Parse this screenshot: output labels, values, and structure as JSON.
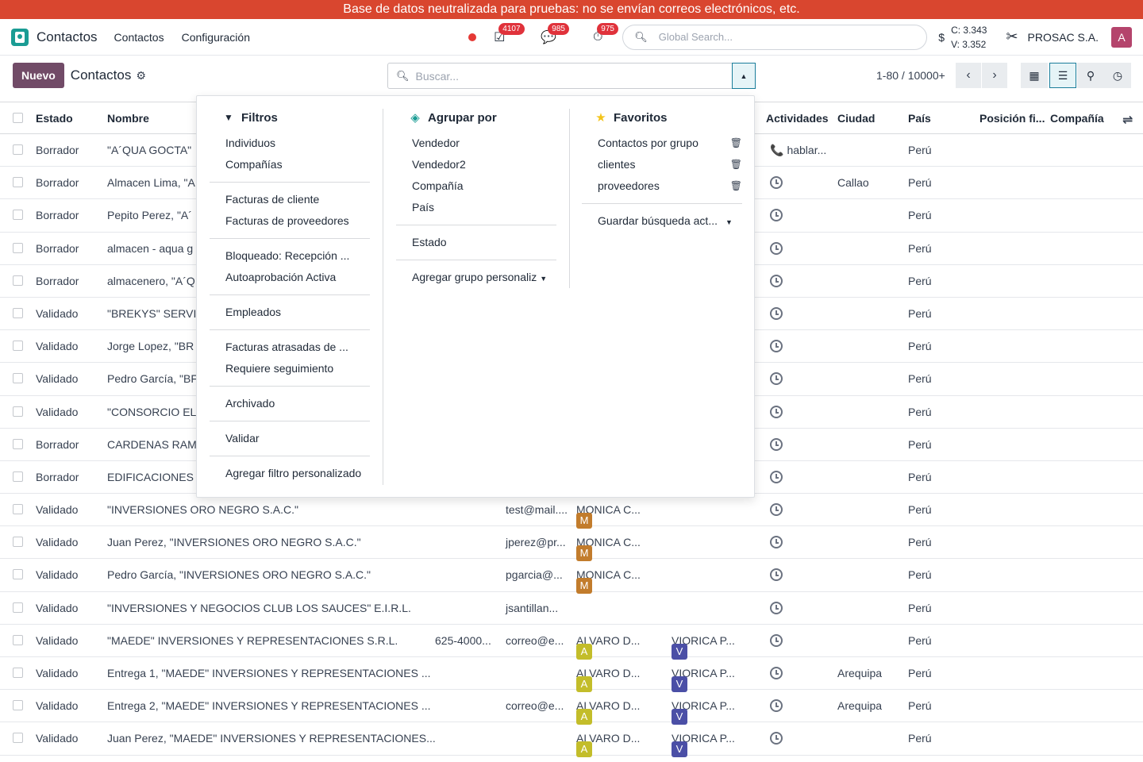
{
  "banner": "Base de datos neutralizada para pruebas: no se envían correos electrónicos, etc.",
  "navbar": {
    "app_name": "Contactos",
    "menus": [
      "Contactos",
      "Configuración"
    ],
    "badges": {
      "activities": "4107",
      "messages": "985",
      "timers": "975"
    },
    "global_search_placeholder": "Global Search...",
    "currency": {
      "symbol": "$",
      "c": "C: 3.343",
      "v": "V: 3.352"
    },
    "company": "PROSAC S.A.",
    "avatar_letter": "A"
  },
  "control": {
    "new_label": "Nuevo",
    "title": "Contactos",
    "search_placeholder": "Buscar...",
    "pager": "1-80 / 10000+"
  },
  "columns": {
    "estado": "Estado",
    "nombre": "Nombre",
    "actividades": "Actividades",
    "ciudad": "Ciudad",
    "pais": "País",
    "posicion": "Posición fi...",
    "compania": "Compañía"
  },
  "rows": [
    {
      "estado": "Borrador",
      "nombre": "\"A´QUA GOCTA\"",
      "phone": "",
      "email": "",
      "v1": "",
      "v2": "",
      "act": "hablar...",
      "ciudad": "",
      "pais": "Perú"
    },
    {
      "estado": "Borrador",
      "nombre": "Almacen Lima, \"A",
      "phone": "",
      "email": "",
      "v1": "",
      "v2": "",
      "act": "clock",
      "ciudad": "Callao",
      "pais": "Perú"
    },
    {
      "estado": "Borrador",
      "nombre": "Pepito Perez, \"A´",
      "phone": "",
      "email": "",
      "v1": "",
      "v2": "",
      "act": "clock",
      "ciudad": "",
      "pais": "Perú"
    },
    {
      "estado": "Borrador",
      "nombre": "almacen - aqua g",
      "phone": "",
      "email": "",
      "v1": "",
      "v2": "",
      "act": "clock",
      "ciudad": "",
      "pais": "Perú"
    },
    {
      "estado": "Borrador",
      "nombre": "almacenero, \"A´Q",
      "phone": "",
      "email": "",
      "v1": "",
      "v2": "",
      "act": "clock",
      "ciudad": "",
      "pais": "Perú"
    },
    {
      "estado": "Validado",
      "nombre": "\"BREKYS\" SERVIC",
      "phone": "",
      "email": "",
      "v1": "",
      "v2": "",
      "act": "clock",
      "ciudad": "",
      "pais": "Perú"
    },
    {
      "estado": "Validado",
      "nombre": "Jorge Lopez, \"BR",
      "phone": "",
      "email": "",
      "v1": "",
      "v2": "",
      "act": "clock",
      "ciudad": "",
      "pais": "Perú"
    },
    {
      "estado": "Validado",
      "nombre": "Pedro García, \"BF",
      "phone": "",
      "email": "",
      "v1": "",
      "v2": "",
      "act": "clock",
      "ciudad": "",
      "pais": "Perú"
    },
    {
      "estado": "Validado",
      "nombre": "\"CONSORCIO EL",
      "phone": "",
      "email": "",
      "v1": "",
      "v2": "",
      "act": "clock",
      "ciudad": "",
      "pais": "Perú"
    },
    {
      "estado": "Borrador",
      "nombre": "CARDENAS RAMI",
      "phone": "",
      "email": "",
      "v1": "",
      "v2": "",
      "act": "clock",
      "ciudad": "",
      "pais": "Perú"
    },
    {
      "estado": "Borrador",
      "nombre": "EDIFICACIONES C",
      "phone": "",
      "email": "",
      "v1": "",
      "v2": "",
      "act": "clock",
      "ciudad": "",
      "pais": "Perú"
    },
    {
      "estado": "Validado",
      "nombre": "\"INVERSIONES ORO NEGRO S.A.C.\"",
      "phone": "",
      "email": "test@mail....",
      "v1": "MONICA C...",
      "v2": "",
      "act": "clock",
      "ciudad": "",
      "pais": "Perú"
    },
    {
      "estado": "Validado",
      "nombre": "Juan Perez, \"INVERSIONES ORO NEGRO S.A.C.\"",
      "phone": "",
      "email": "jperez@pr...",
      "v1": "MONICA C...",
      "v2": "",
      "act": "clock",
      "ciudad": "",
      "pais": "Perú"
    },
    {
      "estado": "Validado",
      "nombre": "Pedro García, \"INVERSIONES ORO NEGRO S.A.C.\"",
      "phone": "",
      "email": "pgarcia@...",
      "v1": "MONICA C...",
      "v2": "",
      "act": "clock",
      "ciudad": "",
      "pais": "Perú"
    },
    {
      "estado": "Validado",
      "nombre": "\"INVERSIONES Y NEGOCIOS CLUB LOS SAUCES\" E.I.R.L.",
      "phone": "",
      "email": "jsantillan...",
      "v1": "",
      "v2": "",
      "act": "clock",
      "ciudad": "",
      "pais": "Perú"
    },
    {
      "estado": "Validado",
      "nombre": "\"MAEDE\" INVERSIONES Y REPRESENTACIONES S.R.L.",
      "phone": "625-4000...",
      "email": "correo@e...",
      "v1": "ALVARO D...",
      "v2": "VIORICA P...",
      "act": "clock",
      "ciudad": "",
      "pais": "Perú"
    },
    {
      "estado": "Validado",
      "nombre": "Entrega 1, \"MAEDE\" INVERSIONES Y REPRESENTACIONES ...",
      "phone": "",
      "email": "",
      "v1": "ALVARO D...",
      "v2": "VIORICA P...",
      "act": "clock",
      "ciudad": "Arequipa",
      "pais": "Perú"
    },
    {
      "estado": "Validado",
      "nombre": "Entrega 2, \"MAEDE\" INVERSIONES Y REPRESENTACIONES ...",
      "phone": "",
      "email": "correo@e...",
      "v1": "ALVARO D...",
      "v2": "VIORICA P...",
      "act": "clock",
      "ciudad": "Arequipa",
      "pais": "Perú"
    },
    {
      "estado": "Validado",
      "nombre": "Juan Perez, \"MAEDE\" INVERSIONES Y REPRESENTACIONES...",
      "phone": "",
      "email": "",
      "v1": "ALVARO D...",
      "v2": "VIORICA P...",
      "act": "clock",
      "ciudad": "",
      "pais": "Perú"
    }
  ],
  "dropdown": {
    "filters": {
      "title": "Filtros",
      "groups": [
        [
          "Individuos",
          "Compañías"
        ],
        [
          "Facturas de cliente",
          "Facturas de proveedores"
        ],
        [
          "Bloqueado: Recepción ...",
          "Autoaprobación Activa"
        ],
        [
          "Empleados"
        ],
        [
          "Facturas atrasadas de ...",
          "Requiere seguimiento"
        ],
        [
          "Archivado"
        ],
        [
          "Validar"
        ],
        [
          "Agregar filtro personalizado"
        ]
      ]
    },
    "groupby": {
      "title": "Agrupar por",
      "groups": [
        [
          "Vendedor",
          "Vendedor2",
          "Compañía",
          "País"
        ],
        [
          "Estado"
        ]
      ],
      "custom": "Agregar grupo personaliz"
    },
    "favorites": {
      "title": "Favoritos",
      "items": [
        "Contactos por grupo",
        "clientes",
        "proveedores"
      ],
      "save": "Guardar búsqueda act..."
    }
  },
  "colors": {
    "brand": "#714b67",
    "banner": "#d9462f",
    "accent": "#1a7d9a",
    "badge": "#e0323b",
    "avatar_m": "#c27c2c",
    "avatar_a": "#c3bd2a",
    "avatar_v": "#4b4fa6"
  }
}
